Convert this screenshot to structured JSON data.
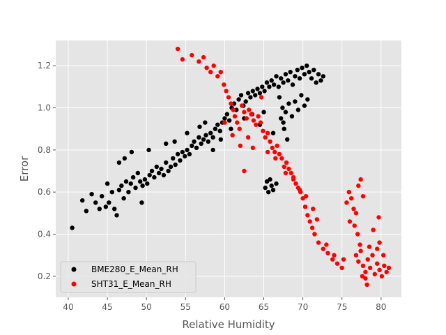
{
  "chart_data": {
    "type": "scatter",
    "title": "",
    "xlabel": "Relative Humidity",
    "ylabel": "Error",
    "xlim": [
      38.4,
      82.6
    ],
    "ylim": [
      0.1,
      1.32
    ],
    "xticks": [
      40,
      45,
      50,
      55,
      60,
      65,
      70,
      75,
      80
    ],
    "yticks": [
      0.2,
      0.4,
      0.6,
      0.8,
      1.0,
      1.2
    ],
    "xtick_labels": [
      "40",
      "45",
      "50",
      "55",
      "60",
      "65",
      "70",
      "75",
      "80"
    ],
    "ytick_labels": [
      "0.2",
      "0.4",
      "0.6",
      "0.8",
      "1.0",
      "1.2"
    ],
    "grid": true,
    "legend_placement": "lower-left",
    "series": [
      {
        "name": "BME280_E_Mean_RH",
        "color": "#000000",
        "points": [
          [
            40.5,
            0.43
          ],
          [
            41.8,
            0.56
          ],
          [
            42.3,
            0.51
          ],
          [
            43,
            0.59
          ],
          [
            43.5,
            0.55
          ],
          [
            44,
            0.52
          ],
          [
            44.3,
            0.58
          ],
          [
            44.8,
            0.53
          ],
          [
            45.2,
            0.55
          ],
          [
            45.6,
            0.6
          ],
          [
            45.9,
            0.52
          ],
          [
            46.2,
            0.49
          ],
          [
            46.5,
            0.61
          ],
          [
            46.8,
            0.63
          ],
          [
            47.1,
            0.57
          ],
          [
            47.4,
            0.65
          ],
          [
            47.7,
            0.6
          ],
          [
            48,
            0.64
          ],
          [
            48.3,
            0.67
          ],
          [
            48.6,
            0.62
          ],
          [
            48.9,
            0.69
          ],
          [
            49.2,
            0.65
          ],
          [
            49.5,
            0.63
          ],
          [
            49.8,
            0.66
          ],
          [
            50.1,
            0.64
          ],
          [
            50.4,
            0.68
          ],
          [
            50.7,
            0.7
          ],
          [
            51,
            0.67
          ],
          [
            51.3,
            0.72
          ],
          [
            51.6,
            0.69
          ],
          [
            51.9,
            0.71
          ],
          [
            52.2,
            0.68
          ],
          [
            52.5,
            0.74
          ],
          [
            52.8,
            0.7
          ],
          [
            53.1,
            0.72
          ],
          [
            53.4,
            0.76
          ],
          [
            53.7,
            0.73
          ],
          [
            54,
            0.78
          ],
          [
            54.3,
            0.75
          ],
          [
            54.6,
            0.79
          ],
          [
            54.9,
            0.77
          ],
          [
            55.2,
            0.8
          ],
          [
            55.5,
            0.78
          ],
          [
            55.8,
            0.82
          ],
          [
            56.1,
            0.84
          ],
          [
            56.4,
            0.81
          ],
          [
            56.7,
            0.86
          ],
          [
            57,
            0.83
          ],
          [
            57.3,
            0.85
          ],
          [
            57.6,
            0.87
          ],
          [
            57.9,
            0.84
          ],
          [
            58.2,
            0.88
          ],
          [
            58.5,
            0.86
          ],
          [
            58.8,
            0.9
          ],
          [
            59.1,
            0.92
          ],
          [
            59.4,
            0.89
          ],
          [
            59.7,
            0.93
          ],
          [
            60,
            0.95
          ],
          [
            60.3,
            0.97
          ],
          [
            60.6,
            0.94
          ],
          [
            60.9,
            1.0
          ],
          [
            61.2,
            1.02
          ],
          [
            61.5,
            0.99
          ],
          [
            61.8,
            1.04
          ],
          [
            62.1,
            1.06
          ],
          [
            62.4,
            1.01
          ],
          [
            62.7,
            1.03
          ],
          [
            63,
            1.07
          ],
          [
            63.3,
            1.05
          ],
          [
            63.6,
            1.08
          ],
          [
            63.9,
            1.06
          ],
          [
            64.2,
            1.09
          ],
          [
            64.5,
            1.07
          ],
          [
            64.8,
            1.1
          ],
          [
            65.1,
            1.08
          ],
          [
            65.4,
            1.12
          ],
          [
            65.7,
            1.1
          ],
          [
            66,
            1.13
          ],
          [
            66.3,
            1.11
          ],
          [
            66.6,
            1.15
          ],
          [
            66.9,
            1.1
          ],
          [
            67.2,
            1.14
          ],
          [
            67.5,
            1.12
          ],
          [
            67.8,
            1.16
          ],
          [
            68.1,
            1.13
          ],
          [
            68.4,
            1.17
          ],
          [
            68.7,
            1.11
          ],
          [
            69,
            1.15
          ],
          [
            69.3,
            1.18
          ],
          [
            69.6,
            1.14
          ],
          [
            69.9,
            1.19
          ],
          [
            70.2,
            1.16
          ],
          [
            70.5,
            1.2
          ],
          [
            70.8,
            1.17
          ],
          [
            71.1,
            1.14
          ],
          [
            71.4,
            1.18
          ],
          [
            71.7,
            1.12
          ],
          [
            72,
            1.16
          ],
          [
            72.3,
            1.13
          ],
          [
            72.6,
            1.15
          ],
          [
            67,
            1.05
          ],
          [
            67.4,
            1.0
          ],
          [
            67.8,
            0.98
          ],
          [
            68.2,
            1.02
          ],
          [
            68.6,
            0.96
          ],
          [
            69,
            1.03
          ],
          [
            69.4,
            0.99
          ],
          [
            69.8,
            1.06
          ],
          [
            70.2,
            1.01
          ],
          [
            70.6,
            1.04
          ],
          [
            67.2,
            0.95
          ],
          [
            67.6,
            0.9
          ],
          [
            68,
            0.85
          ],
          [
            65.2,
            0.62
          ],
          [
            65.4,
            0.65
          ],
          [
            65.6,
            0.6
          ],
          [
            65.8,
            0.66
          ],
          [
            66,
            0.63
          ],
          [
            66.2,
            0.61
          ],
          [
            66.6,
            0.64
          ],
          [
            45,
            0.64
          ],
          [
            46.5,
            0.74
          ],
          [
            47.2,
            0.76
          ],
          [
            48.1,
            0.79
          ],
          [
            49.4,
            0.55
          ],
          [
            50.3,
            0.8
          ],
          [
            52.5,
            0.83
          ],
          [
            53.6,
            0.84
          ],
          [
            55.2,
            0.88
          ],
          [
            56.8,
            0.91
          ],
          [
            57.5,
            0.93
          ],
          [
            58.5,
            0.8
          ],
          [
            59.5,
            0.85
          ],
          [
            60.8,
            0.9
          ],
          [
            62.5,
            0.95
          ],
          [
            63.5,
            0.97
          ],
          [
            64.5,
            0.92
          ],
          [
            65,
            0.98
          ],
          [
            66.2,
            0.88
          ],
          [
            67.5,
            0.93
          ]
        ]
      },
      {
        "name": "SHT31_E_Mean_RH",
        "color": "#ff0000",
        "points": [
          [
            54,
            1.28
          ],
          [
            54.6,
            1.23
          ],
          [
            55.8,
            1.25
          ],
          [
            56.7,
            1.22
          ],
          [
            57.3,
            1.24
          ],
          [
            57.7,
            1.19
          ],
          [
            58.2,
            1.17
          ],
          [
            58.6,
            1.2
          ],
          [
            59.1,
            1.15
          ],
          [
            59.5,
            1.17
          ],
          [
            59.9,
            1.11
          ],
          [
            60.2,
            1.08
          ],
          [
            60.5,
            1.05
          ],
          [
            60.8,
            1.02
          ],
          [
            61.1,
            0.99
          ],
          [
            61.3,
            0.96
          ],
          [
            61.6,
            0.93
          ],
          [
            61.9,
            0.9
          ],
          [
            62.2,
            1.01
          ],
          [
            62.5,
            0.98
          ],
          [
            62.8,
            0.95
          ],
          [
            63.1,
            0.99
          ],
          [
            63.4,
            0.97
          ],
          [
            63.7,
            0.94
          ],
          [
            64,
            0.92
          ],
          [
            64.3,
            0.96
          ],
          [
            64.6,
            0.93
          ],
          [
            64.9,
            0.89
          ],
          [
            65.2,
            0.86
          ],
          [
            65.5,
            0.88
          ],
          [
            65.8,
            0.84
          ],
          [
            66.1,
            0.81
          ],
          [
            66.4,
            0.79
          ],
          [
            66.7,
            0.82
          ],
          [
            67,
            0.78
          ],
          [
            67.3,
            0.76
          ],
          [
            67.6,
            0.72
          ],
          [
            67.9,
            0.74
          ],
          [
            68.2,
            0.71
          ],
          [
            68.5,
            0.69
          ],
          [
            68.8,
            0.67
          ],
          [
            69.1,
            0.64
          ],
          [
            69.4,
            0.62
          ],
          [
            69.7,
            0.6
          ],
          [
            70,
            0.57
          ],
          [
            70.3,
            0.53
          ],
          [
            70.6,
            0.49
          ],
          [
            70.9,
            0.46
          ],
          [
            71.2,
            0.43
          ],
          [
            71.5,
            0.4
          ],
          [
            72,
            0.36
          ],
          [
            72.6,
            0.33
          ],
          [
            73.2,
            0.31
          ],
          [
            73.8,
            0.28
          ],
          [
            74.4,
            0.26
          ],
          [
            75,
            0.24
          ],
          [
            75.6,
            0.55
          ],
          [
            75.9,
            0.6
          ],
          [
            76.2,
            0.57
          ],
          [
            76.5,
            0.52
          ],
          [
            76.8,
            0.5
          ],
          [
            77.1,
            0.63
          ],
          [
            77.4,
            0.66
          ],
          [
            77.7,
            0.58
          ],
          [
            76.8,
            0.3
          ],
          [
            77.1,
            0.27
          ],
          [
            77.4,
            0.32
          ],
          [
            77.7,
            0.25
          ],
          [
            78,
            0.22
          ],
          [
            78.3,
            0.28
          ],
          [
            78.6,
            0.24
          ],
          [
            78.9,
            0.3
          ],
          [
            79.2,
            0.21
          ],
          [
            79.5,
            0.26
          ],
          [
            79.8,
            0.23
          ],
          [
            80.1,
            0.2
          ],
          [
            80.4,
            0.25
          ],
          [
            80.7,
            0.22
          ],
          [
            81,
            0.24
          ],
          [
            79.5,
            0.33
          ],
          [
            79.8,
            0.36
          ],
          [
            77.3,
            0.35
          ],
          [
            77.6,
            0.2
          ],
          [
            78,
            0.19
          ],
          [
            78.2,
            0.16
          ],
          [
            79.7,
            0.48
          ],
          [
            77,
            0.4
          ],
          [
            78.5,
            0.34
          ],
          [
            79,
            0.42
          ],
          [
            80.3,
            0.3
          ],
          [
            60,
            0.93
          ],
          [
            61,
            0.87
          ],
          [
            62,
            0.82
          ],
          [
            62.5,
            0.7
          ],
          [
            63,
            0.86
          ],
          [
            63.6,
            0.81
          ],
          [
            64.7,
            1.05
          ],
          [
            65.5,
            0.79
          ],
          [
            66.5,
            0.76
          ],
          [
            67.8,
            0.69
          ],
          [
            68.8,
            0.66
          ],
          [
            69.6,
            0.61
          ],
          [
            70.4,
            0.58
          ],
          [
            71.3,
            0.52
          ],
          [
            71.8,
            0.47
          ],
          [
            73,
            0.35
          ],
          [
            74,
            0.3
          ],
          [
            75.2,
            0.28
          ],
          [
            76,
            0.46
          ],
          [
            76.6,
            0.44
          ]
        ]
      }
    ]
  }
}
